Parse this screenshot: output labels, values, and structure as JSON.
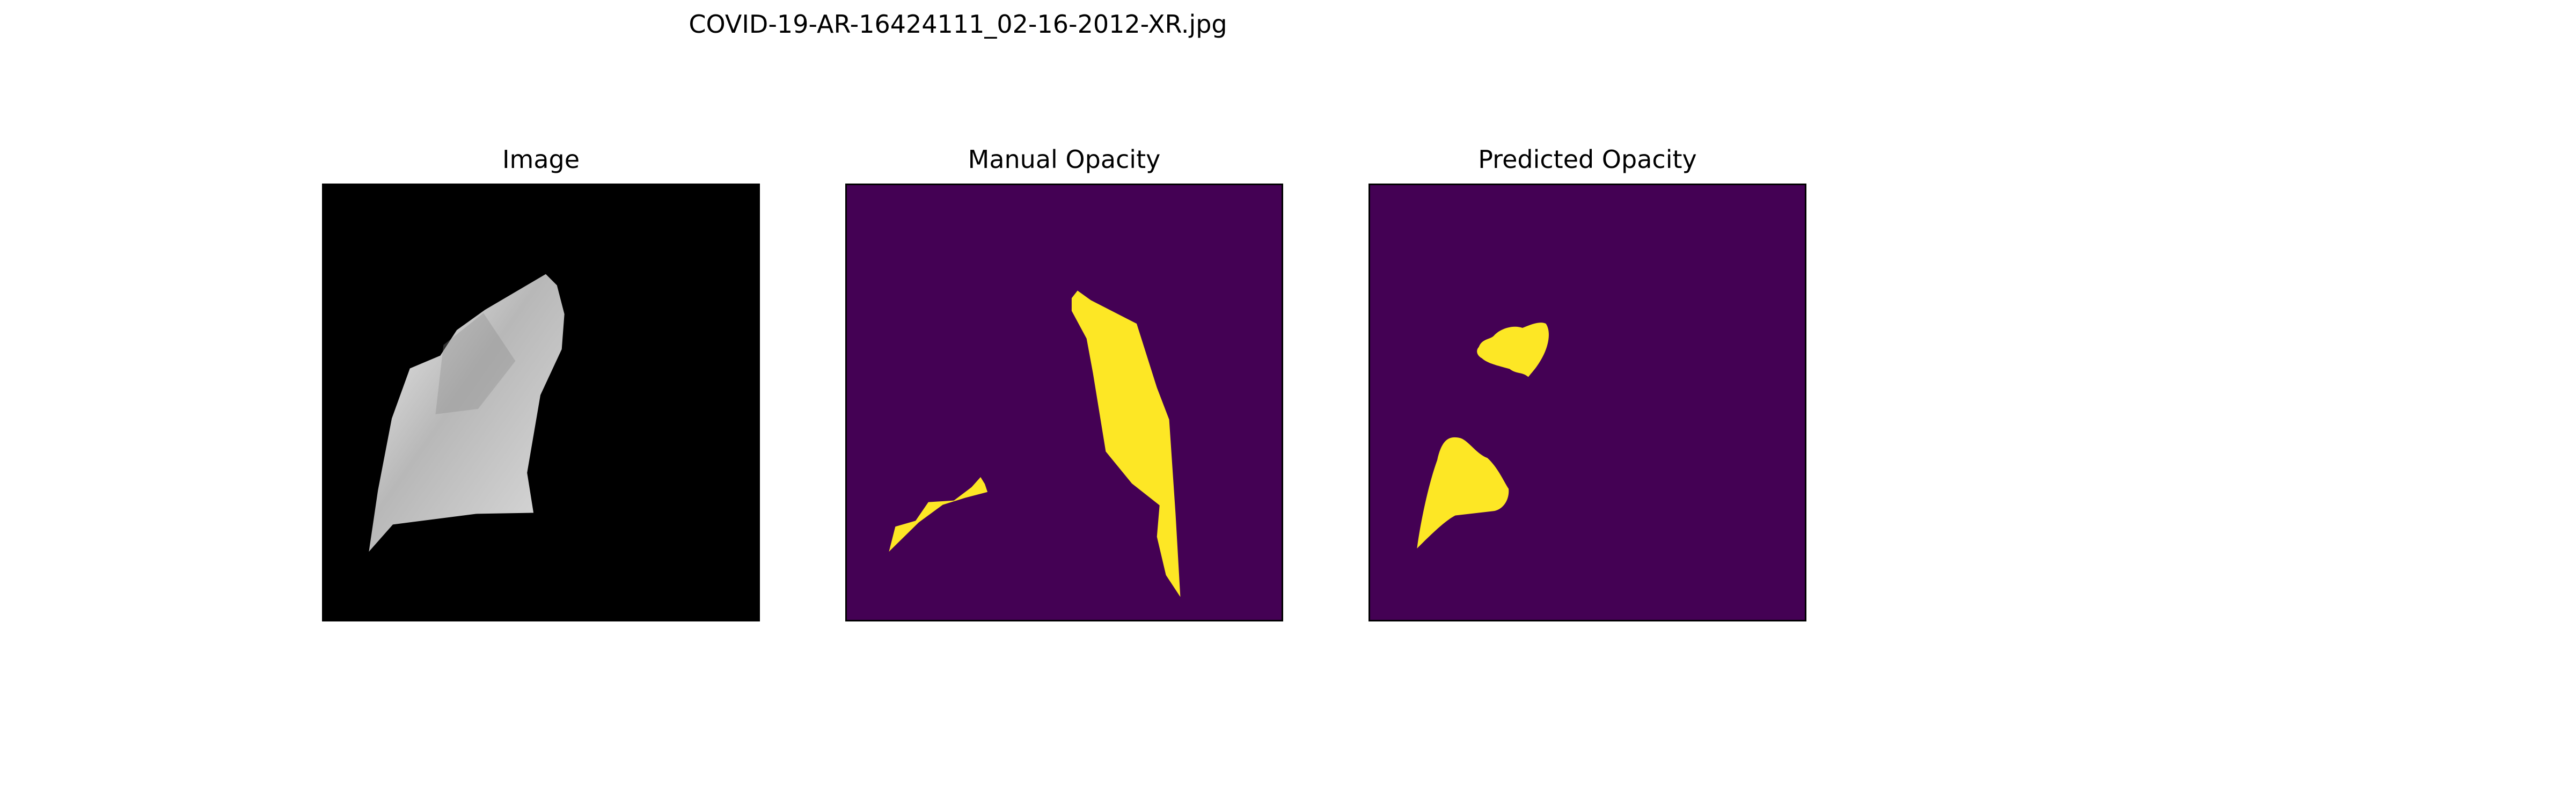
{
  "figure": {
    "title": "COVID-19-AR-16424111_02-16-2012-XR.jpg",
    "panels": [
      {
        "title": "Image",
        "kind": "grayscale-xray-lung-crop"
      },
      {
        "title": "Manual Opacity",
        "kind": "binary-mask",
        "background_color": "#440154",
        "mask_color": "#fde725"
      },
      {
        "title": "Predicted Opacity",
        "kind": "binary-mask",
        "background_color": "#440154",
        "mask_color": "#fde725"
      }
    ]
  }
}
